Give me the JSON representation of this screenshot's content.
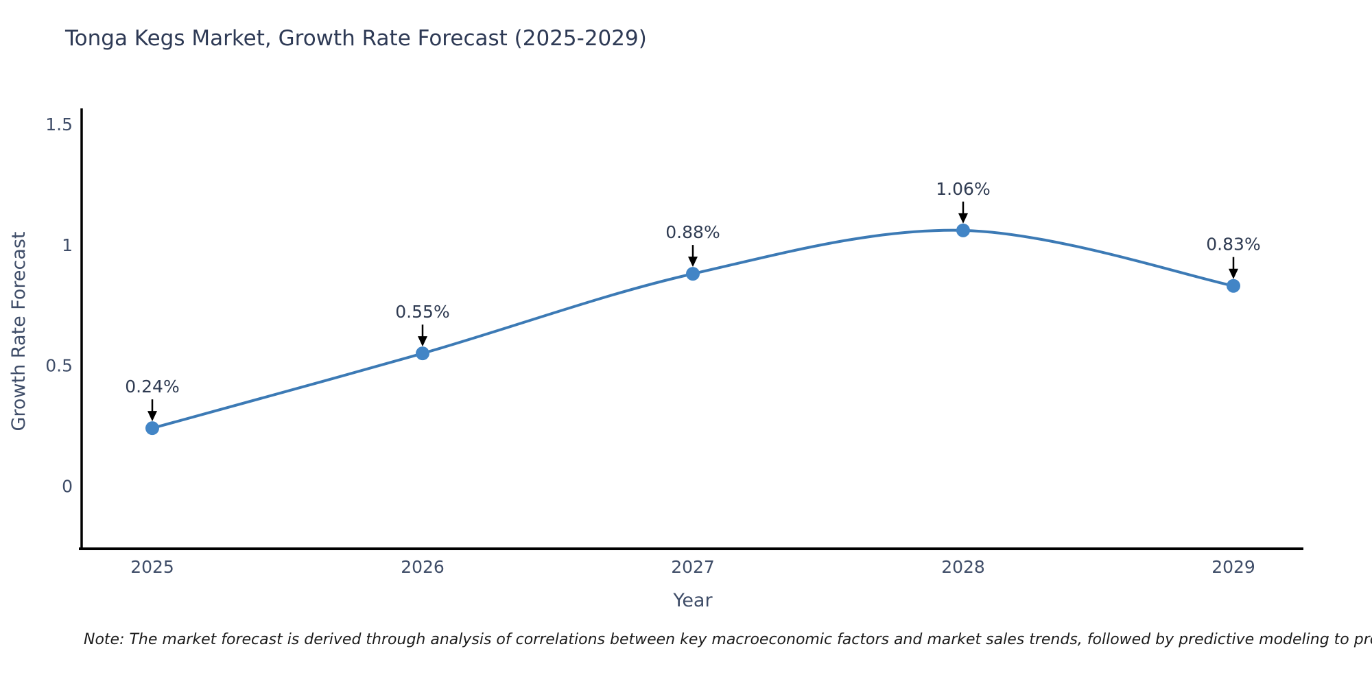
{
  "title": "Tonga Kegs Market, Growth Rate Forecast (2025-2029)",
  "note": "Note: The market forecast is derived through analysis of correlations between key macroeconomic factors and market sales trends, followed by predictive modeling to project future sales",
  "chart_data": {
    "type": "line",
    "title": "Tonga Kegs Market, Growth Rate Forecast (2025-2029)",
    "categories": [
      "2025",
      "2026",
      "2027",
      "2028",
      "2029"
    ],
    "series": [
      {
        "name": "Growth Rate Forecast",
        "values": [
          0.24,
          0.55,
          0.88,
          1.06,
          0.83
        ]
      }
    ],
    "point_labels": [
      "0.24%",
      "0.55%",
      "0.88%",
      "1.06%",
      "0.83%"
    ],
    "xlabel": "Year",
    "ylabel": "Growth Rate Forecast",
    "ytick_labels": [
      "0",
      "0.5",
      "1",
      "1.5"
    ],
    "ytick_values": [
      0,
      0.5,
      1,
      1.5
    ],
    "ylim": [
      -0.26,
      1.56
    ],
    "grid": false,
    "legend": "none",
    "line_shape": "spline",
    "colors": {
      "line": "#3c7ab5",
      "marker": "#4285c6",
      "axis": "#000000",
      "title_text": "#2e3a55",
      "tick_text": "#3f4d68",
      "annotation_text": "#2f3b52",
      "annotation_arrow": "#000000",
      "note_text": "#1c1c1c",
      "background": "#ffffff"
    }
  }
}
